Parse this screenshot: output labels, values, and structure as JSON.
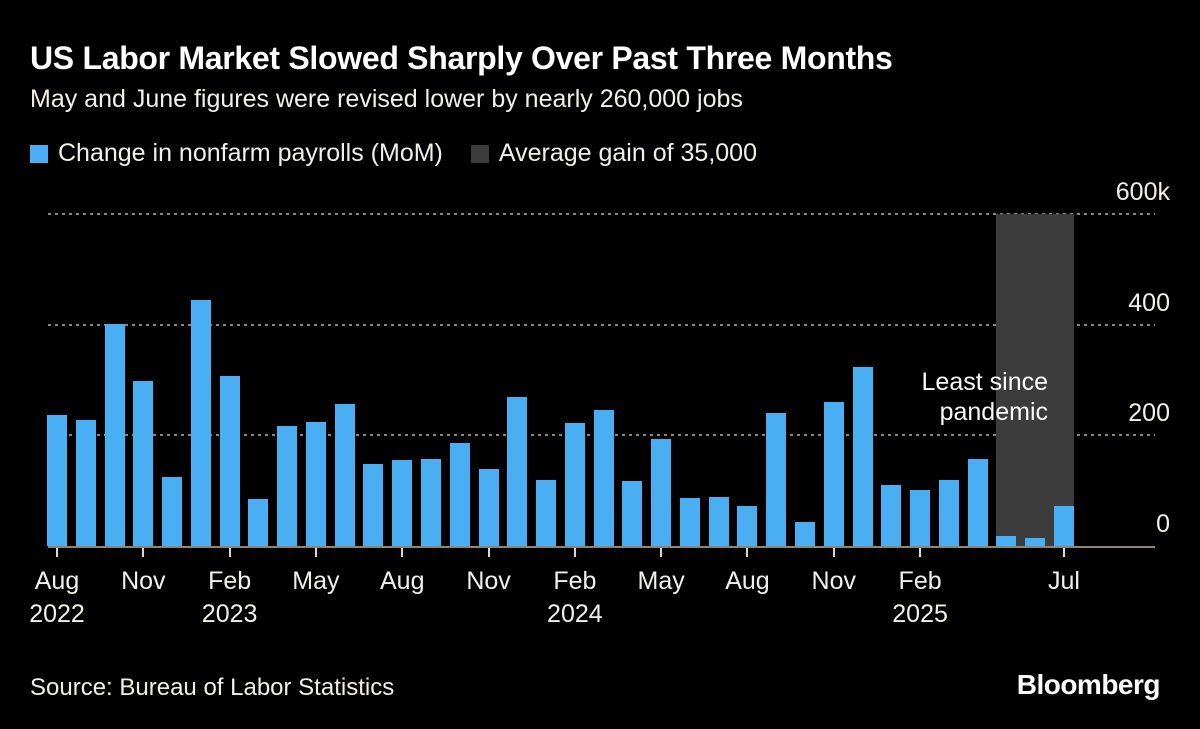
{
  "header": {
    "title": "US Labor Market Slowed Sharply Over Past Three Months",
    "subtitle": "May and June figures were revised lower by nearly 260,000 jobs"
  },
  "legend": {
    "series": {
      "label": "Change in nonfarm payrolls (MoM)",
      "color": "#49aef2"
    },
    "average": {
      "label": "Average gain of 35,000",
      "color": "#3c3c3c"
    }
  },
  "annotation": {
    "line1": "Least since",
    "line2": "pandemic"
  },
  "footer": {
    "source": "Source: Bureau of Labor Statistics",
    "brand": "Bloomberg"
  },
  "colors": {
    "background": "#000000",
    "bar": "#49aef2",
    "band": "#3c3c3c",
    "gridline": "#8b877d",
    "axis": "#8e8577",
    "text": "#f3f0ea",
    "title": "#ffffff"
  },
  "chart_data": {
    "type": "bar",
    "title": "US Labor Market Slowed Sharply Over Past Three Months",
    "subtitle": "May and June figures were revised lower by nearly 260,000 jobs",
    "unit": "thousands of jobs, month-over-month change",
    "ylabel": "",
    "xlabel": "",
    "ylim": [
      0,
      600
    ],
    "grid": "dotted horizontal",
    "legend_position": "top-left",
    "x": [
      "Aug 2022",
      "Sep 2022",
      "Oct 2022",
      "Nov 2022",
      "Dec 2022",
      "Jan 2023",
      "Feb 2023",
      "Mar 2023",
      "Apr 2023",
      "May 2023",
      "Jun 2023",
      "Jul 2023",
      "Aug 2023",
      "Sep 2023",
      "Oct 2023",
      "Nov 2023",
      "Dec 2023",
      "Jan 2024",
      "Feb 2024",
      "Mar 2024",
      "Apr 2024",
      "May 2024",
      "Jun 2024",
      "Jul 2024",
      "Aug 2024",
      "Sep 2024",
      "Oct 2024",
      "Nov 2024",
      "Dec 2024",
      "Jan 2025",
      "Feb 2025",
      "Mar 2025",
      "Apr 2025",
      "May 2025",
      "Jun 2025",
      "Jul 2025"
    ],
    "values": [
      237,
      227,
      402,
      298,
      125,
      445,
      307,
      85,
      216,
      225,
      256,
      148,
      156,
      157,
      187,
      140,
      270,
      119,
      222,
      246,
      118,
      193,
      87,
      88,
      72,
      240,
      44,
      261,
      323,
      111,
      102,
      120,
      158,
      19,
      14,
      73
    ],
    "series_name": "Change in nonfarm payrolls (MoM)",
    "y_ticks": [
      {
        "label": "600k",
        "value": 600
      },
      {
        "label": "400",
        "value": 400
      },
      {
        "label": "200",
        "value": 200
      },
      {
        "label": "0",
        "value": 0
      }
    ],
    "x_ticks": [
      {
        "index": 0,
        "month": "Aug",
        "year": "2022"
      },
      {
        "index": 3,
        "month": "Nov",
        "year": ""
      },
      {
        "index": 6,
        "month": "Feb",
        "year": "2023"
      },
      {
        "index": 9,
        "month": "May",
        "year": ""
      },
      {
        "index": 12,
        "month": "Aug",
        "year": ""
      },
      {
        "index": 15,
        "month": "Nov",
        "year": ""
      },
      {
        "index": 18,
        "month": "Feb",
        "year": "2024"
      },
      {
        "index": 21,
        "month": "May",
        "year": ""
      },
      {
        "index": 24,
        "month": "Aug",
        "year": ""
      },
      {
        "index": 27,
        "month": "Nov",
        "year": ""
      },
      {
        "index": 30,
        "month": "Feb",
        "year": "2025"
      },
      {
        "index": 35,
        "month": "Jul",
        "year": ""
      }
    ],
    "highlight_band": {
      "from_index": 33,
      "to_index": 35,
      "meaning": "Average gain of 35,000",
      "annotation": "Least since pandemic"
    }
  }
}
